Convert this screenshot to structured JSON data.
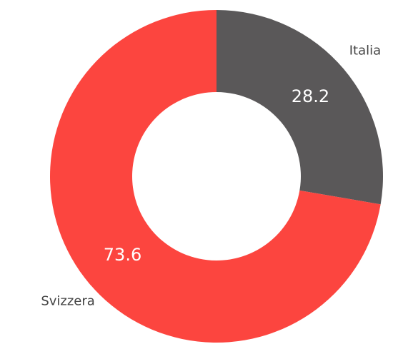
{
  "chart_data": {
    "type": "donut",
    "categories": [
      "Italia",
      "Svizzera"
    ],
    "values": [
      28.2,
      73.6
    ],
    "colors": [
      "#5a5859",
      "#fc453f"
    ]
  }
}
